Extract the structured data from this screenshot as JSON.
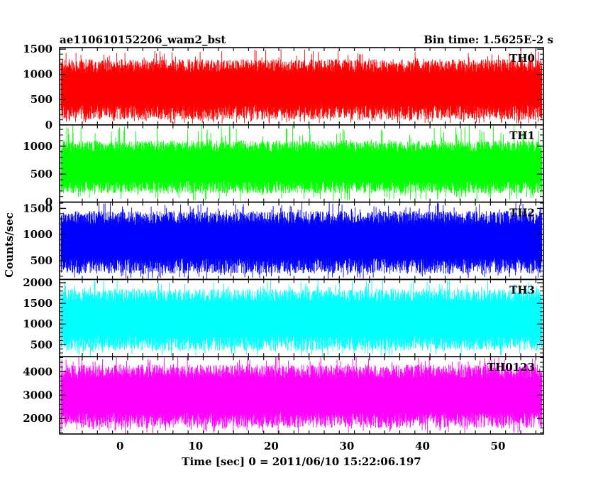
{
  "header": {
    "left_title": "ae110610152206_wam2_bst",
    "right_title": "Bin time: 1.5625E-2 s"
  },
  "chart_data": {
    "type": "line",
    "xlabel": "Time [sec] 0 = 2011/06/10 15:22:06.197",
    "ylabel": "Counts/sec",
    "xlim": [
      -8,
      56
    ],
    "x_range_data": [
      -7.8,
      55.8
    ],
    "bin_time_s": 0.015625,
    "x_ticks": [
      0,
      10,
      20,
      30,
      40,
      50
    ],
    "grid": false,
    "series": [
      {
        "name": "TH0",
        "color": "#ff0000",
        "ylim": [
          0,
          1530
        ],
        "y_ticks": [
          0,
          500,
          1000,
          1500
        ],
        "typical_min": 100,
        "typical_max": 1300,
        "lower_spike_min": 20,
        "upper_spike_max": 1500
      },
      {
        "name": "TH1",
        "color": "#00ff00",
        "ylim": [
          0,
          1380
        ],
        "y_ticks": [
          0,
          500,
          1000
        ],
        "typical_min": 150,
        "typical_max": 1100,
        "lower_spike_min": 20,
        "upper_spike_max": 1380
      },
      {
        "name": "TH2",
        "color": "#0000ff",
        "ylim": [
          140,
          1620
        ],
        "y_ticks": [
          500,
          1000,
          1500
        ],
        "typical_min": 250,
        "typical_max": 1450,
        "lower_spike_min": 150,
        "upper_spike_max": 1620
      },
      {
        "name": "TH3",
        "color": "#00ffff",
        "ylim": [
          210,
          2080
        ],
        "y_ticks": [
          500,
          1000,
          1500,
          2000
        ],
        "typical_min": 350,
        "typical_max": 1850,
        "lower_spike_min": 220,
        "upper_spike_max": 2080
      },
      {
        "name": "TH0123",
        "color": "#ff00ff",
        "ylim": [
          1340,
          4640
        ],
        "y_ticks": [
          2000,
          3000,
          4000
        ],
        "typical_min": 1600,
        "typical_max": 4300,
        "lower_spike_min": 1360,
        "upper_spike_max": 4640
      }
    ]
  }
}
